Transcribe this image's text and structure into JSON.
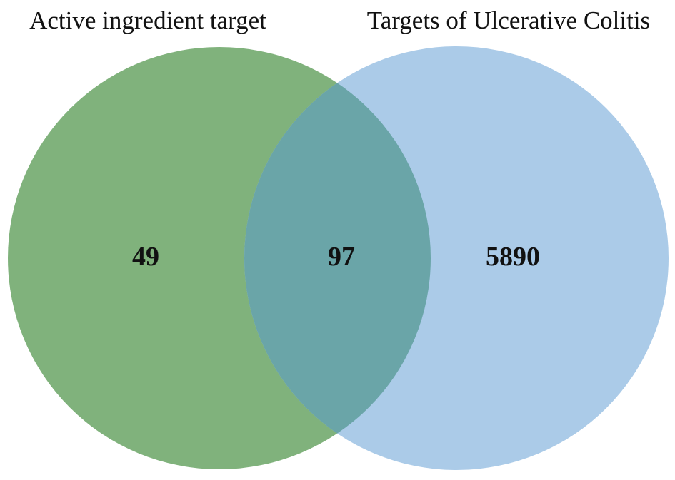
{
  "sets": [
    {
      "label": "Active ingredient target",
      "only_count": "49",
      "color": "#80b27c"
    },
    {
      "label": "Targets of Ulcerative Colitis",
      "only_count": "5890",
      "color": "#abcbe8"
    }
  ],
  "intersection": {
    "count": "97",
    "color": "#6aa5a8"
  }
}
